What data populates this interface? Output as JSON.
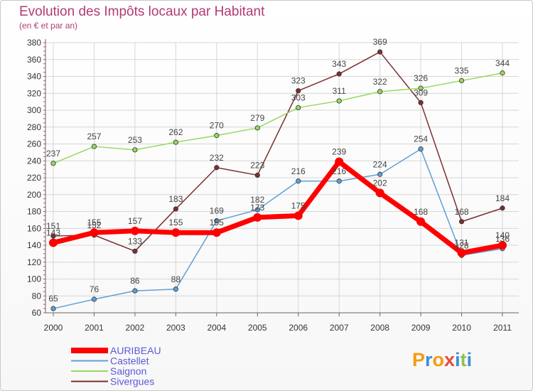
{
  "chart_data": {
    "type": "line",
    "title": "Evolution des Impôts locaux par Habitant",
    "subtitle": "(en € et par an)",
    "xlabel": "",
    "ylabel": "",
    "x": [
      "2000",
      "2001",
      "2002",
      "2003",
      "2004",
      "2005",
      "2006",
      "2007",
      "2008",
      "2009",
      "2010",
      "2011"
    ],
    "ylim": [
      60,
      380
    ],
    "yticks": [
      60,
      80,
      100,
      120,
      140,
      160,
      180,
      200,
      220,
      240,
      260,
      280,
      300,
      320,
      340,
      360,
      380
    ],
    "grid": true,
    "legend_position": "bottom-left",
    "series": [
      {
        "name": "AURIBEAU",
        "color": "#ff0000",
        "values": [
          143,
          155,
          157,
          155,
          155,
          173,
          175,
          239,
          202,
          168,
          131,
          140
        ]
      },
      {
        "name": "Castellet",
        "color": "#5fa0d6",
        "values": [
          65,
          76,
          86,
          88,
          169,
          182,
          216,
          216,
          224,
          254,
          128,
          136
        ]
      },
      {
        "name": "Saignon",
        "color": "#96d95e",
        "values": [
          237,
          257,
          253,
          262,
          270,
          279,
          303,
          311,
          322,
          326,
          335,
          344
        ]
      },
      {
        "name": "Sivergues",
        "color": "#7b2f2f",
        "values": [
          151,
          152,
          133,
          183,
          232,
          223,
          323,
          343,
          369,
          309,
          168,
          184
        ]
      }
    ]
  },
  "brand": {
    "letters": [
      "P",
      "r",
      "o",
      "x",
      "i",
      "t",
      "i"
    ],
    "colors": [
      "#f39c12",
      "#3a8fd6",
      "#f39c12",
      "#e74c3c",
      "#3a8fd6",
      "#8bc34a",
      "#3a8fd6"
    ]
  }
}
